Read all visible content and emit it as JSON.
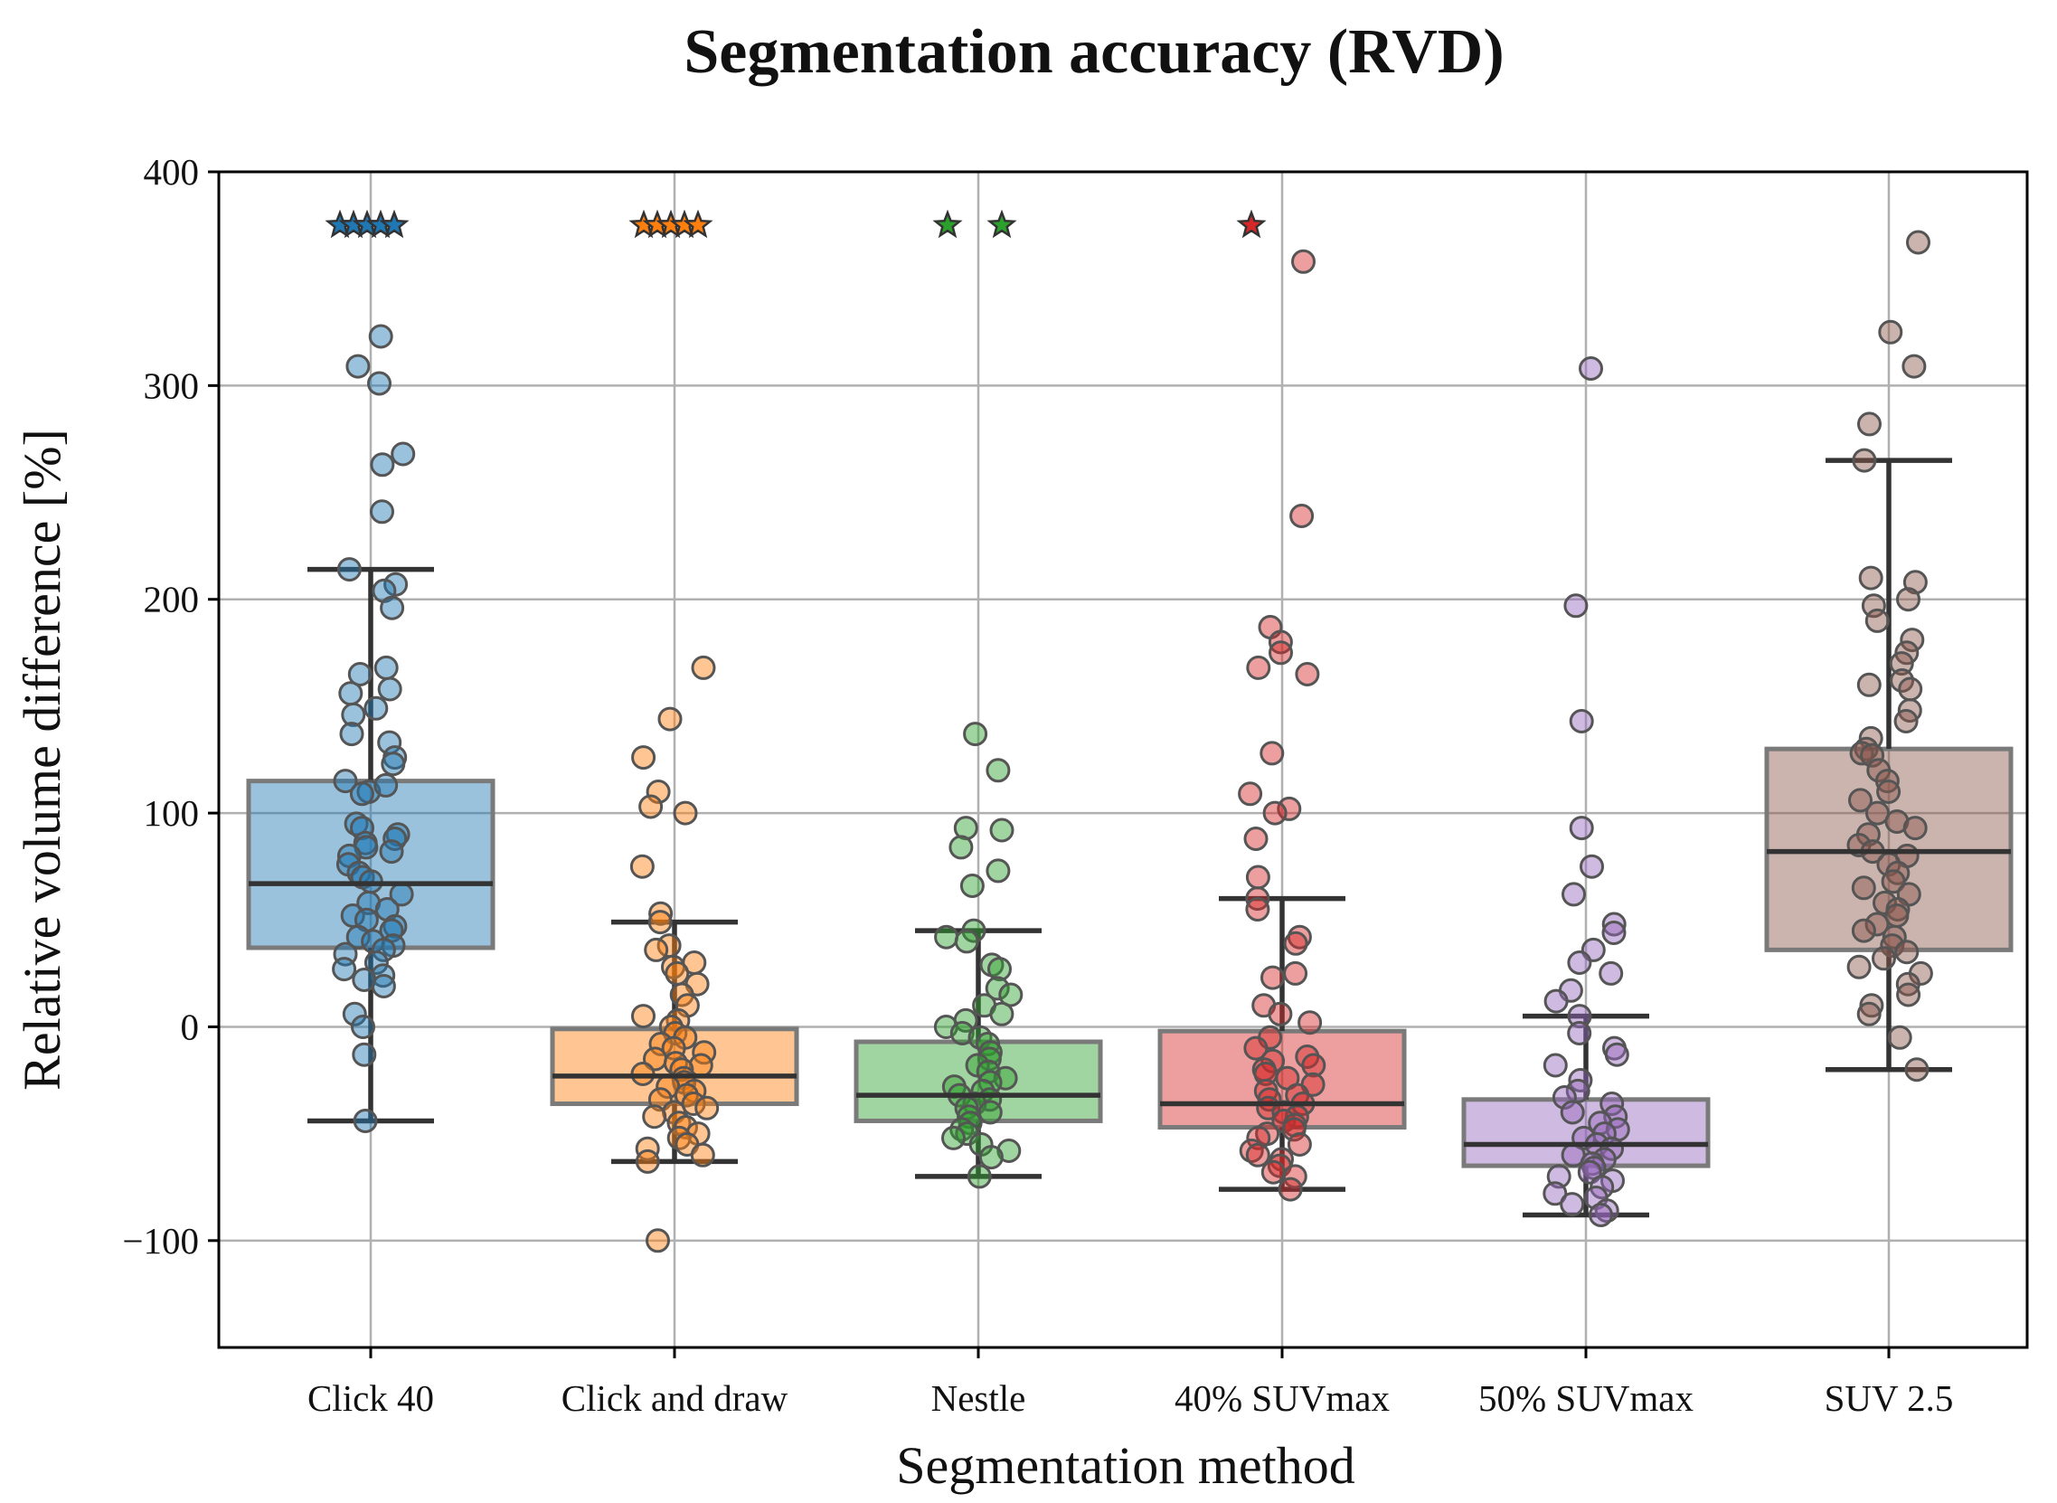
{
  "chart_data": {
    "type": "box",
    "title": "Segmentation accuracy (RVD)",
    "xlabel": "Segmentation method",
    "ylabel": "Relative volume difference [%]",
    "ylim": [
      -150,
      400
    ],
    "yticks": [
      -100,
      0,
      100,
      200,
      300,
      400
    ],
    "ytick_labels": [
      "−100",
      "0",
      "100",
      "200",
      "300",
      "400"
    ],
    "grid": true,
    "outlier_marker_value": 375,
    "categories": [
      "Click 40",
      "Click and draw",
      "Nestle",
      "40% SUVmax",
      "50% SUVmax",
      "SUV 2.5"
    ],
    "series": [
      {
        "name": "Click 40",
        "color": "#1f77b4",
        "box": {
          "whisker_low": -44,
          "q1": 37,
          "median": 67,
          "q3": 115,
          "whisker_high": 214
        },
        "off_scale_count": 5,
        "points": [
          323,
          309,
          301,
          268,
          263,
          241,
          214,
          207,
          204,
          196,
          168,
          165,
          158,
          156,
          149,
          146,
          137,
          133,
          126,
          123,
          115,
          110,
          113,
          109,
          95,
          93,
          90,
          88,
          86,
          84,
          82,
          80,
          76,
          72,
          70,
          68,
          62,
          58,
          55,
          52,
          50,
          47,
          45,
          42,
          40,
          38,
          36,
          34,
          30,
          27,
          24,
          22,
          19,
          6,
          0,
          -13,
          -44
        ]
      },
      {
        "name": "Click and draw",
        "color": "#ff7f0e",
        "box": {
          "whisker_low": -63,
          "q1": -36,
          "median": -23,
          "q3": -1,
          "whisker_high": 49
        },
        "off_scale_count": 5,
        "points": [
          168,
          144,
          126,
          110,
          103,
          100,
          75,
          53,
          49,
          38,
          36,
          30,
          28,
          25,
          20,
          15,
          10,
          5,
          3,
          0,
          -3,
          -5,
          -8,
          -10,
          -12,
          -15,
          -17,
          -18,
          -20,
          -22,
          -24,
          -26,
          -28,
          -30,
          -32,
          -34,
          -36,
          -38,
          -40,
          -42,
          -45,
          -47,
          -50,
          -52,
          -55,
          -57,
          -60,
          -63,
          -100
        ]
      },
      {
        "name": "Nestle",
        "color": "#2ca02c",
        "box": {
          "whisker_low": -70,
          "q1": -44,
          "median": -32,
          "q3": -7,
          "whisker_high": 45
        },
        "off_scale_count": 2,
        "points": [
          137,
          120,
          93,
          92,
          84,
          73,
          66,
          45,
          42,
          40,
          29,
          27,
          18,
          15,
          10,
          6,
          3,
          0,
          -3,
          -5,
          -8,
          -12,
          -15,
          -18,
          -21,
          -24,
          -26,
          -28,
          -30,
          -32,
          -34,
          -36,
          -38,
          -40,
          -42,
          -45,
          -48,
          -50,
          -52,
          -55,
          -58,
          -61,
          -70
        ]
      },
      {
        "name": "40% SUVmax",
        "color": "#d62728",
        "box": {
          "whisker_low": -76,
          "q1": -47,
          "median": -36,
          "q3": -2,
          "whisker_high": 60
        },
        "off_scale_count": 1,
        "points": [
          358,
          239,
          187,
          180,
          175,
          168,
          165,
          128,
          109,
          102,
          100,
          88,
          70,
          60,
          55,
          42,
          39,
          25,
          23,
          10,
          6,
          2,
          -5,
          -10,
          -14,
          -16,
          -18,
          -20,
          -22,
          -24,
          -27,
          -30,
          -32,
          -34,
          -36,
          -38,
          -40,
          -42,
          -44,
          -46,
          -48,
          -50,
          -52,
          -55,
          -58,
          -60,
          -62,
          -65,
          -68,
          -70,
          -76
        ]
      },
      {
        "name": "50% SUVmax",
        "color": "#9467bd",
        "box": {
          "whisker_low": -88,
          "q1": -65,
          "median": -55,
          "q3": -34,
          "whisker_high": 5
        },
        "off_scale_count": 0,
        "points": [
          308,
          197,
          143,
          93,
          75,
          62,
          48,
          44,
          36,
          30,
          25,
          17,
          12,
          5,
          -3,
          -10,
          -13,
          -18,
          -25,
          -30,
          -33,
          -36,
          -40,
          -42,
          -45,
          -48,
          -50,
          -52,
          -55,
          -57,
          -60,
          -62,
          -64,
          -66,
          -68,
          -70,
          -72,
          -75,
          -78,
          -80,
          -83,
          -86,
          -88
        ]
      },
      {
        "name": "SUV 2.5",
        "color": "#8c564b",
        "box": {
          "whisker_low": -20,
          "q1": 36,
          "median": 82,
          "q3": 130,
          "whisker_high": 265
        },
        "off_scale_count": 0,
        "points": [
          367,
          325,
          309,
          282,
          265,
          210,
          208,
          200,
          197,
          190,
          181,
          175,
          170,
          162,
          160,
          158,
          148,
          143,
          135,
          130,
          128,
          127,
          120,
          115,
          110,
          106,
          100,
          96,
          93,
          90,
          85,
          82,
          80,
          76,
          72,
          68,
          65,
          62,
          58,
          55,
          52,
          48,
          45,
          42,
          38,
          35,
          32,
          28,
          25,
          20,
          15,
          10,
          6,
          -5,
          -20
        ]
      }
    ]
  }
}
